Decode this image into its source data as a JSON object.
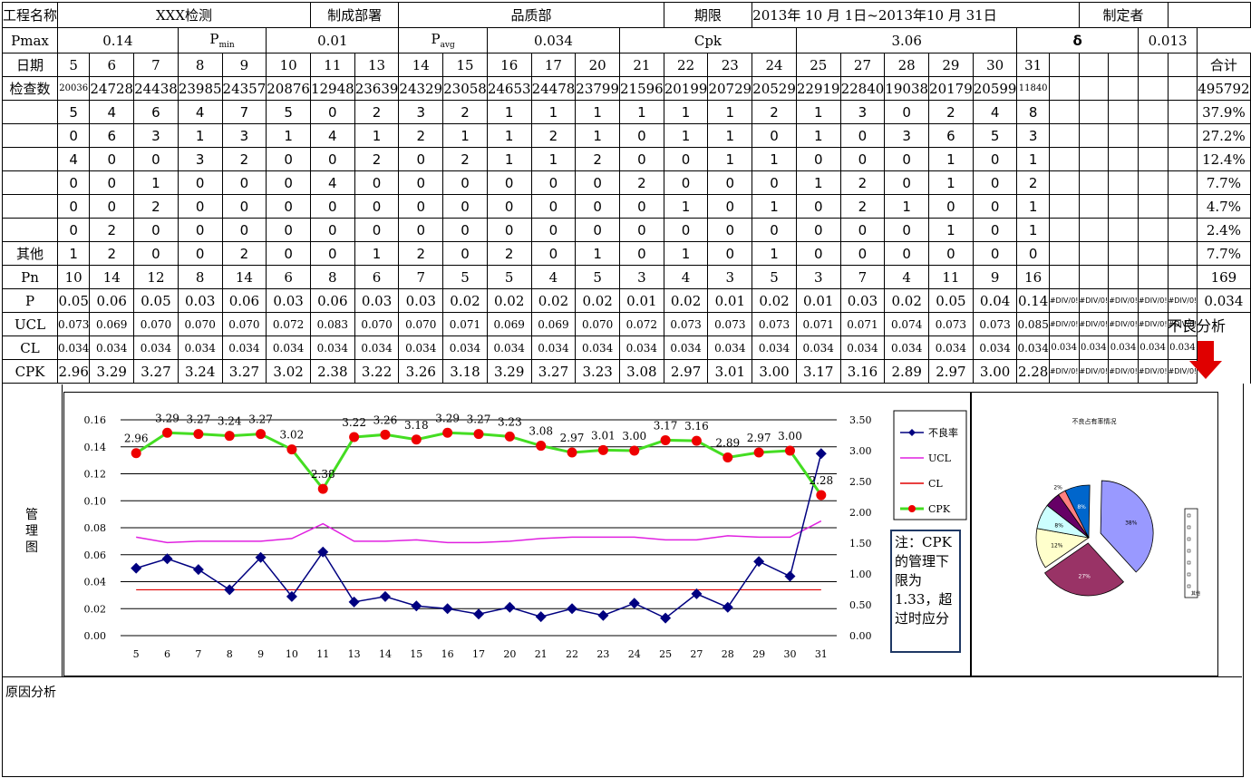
{
  "header": {
    "project_label": "工程名称",
    "project_value": "XXX检测",
    "dept_label": "制成部署",
    "dept_value": "品质部",
    "period_label": "期限",
    "period_value": "2013年 10 月  1日~2013年10 月 31日",
    "author_label": "制定者",
    "author_value": ""
  },
  "params": {
    "pmax_label": "Pmax",
    "pmax_value": "0.14",
    "pmin_label": "P",
    "pmin_sub": "min",
    "pmin_value": "0.01",
    "pavg_label": "P",
    "pavg_sub": "avg",
    "pavg_value": "0.034",
    "cpk_label": "Cpk",
    "cpk_value": "3.06",
    "delta_label": "δ",
    "delta_value": "0.013"
  },
  "table": {
    "date_label": "日期",
    "total_label": "合计",
    "dates": [
      "5",
      "6",
      "7",
      "8",
      "9",
      "10",
      "11",
      "13",
      "14",
      "15",
      "16",
      "17",
      "20",
      "21",
      "22",
      "23",
      "24",
      "25",
      "27",
      "28",
      "29",
      "30",
      "31"
    ],
    "inspect_label": "检查数",
    "inspect": [
      "20036",
      "24728",
      "24438",
      "23985",
      "24357",
      "20876",
      "12948",
      "23639",
      "24329",
      "23058",
      "24653",
      "24478",
      "23799",
      "21596",
      "20199",
      "20729",
      "20529",
      "22919",
      "22840",
      "19038",
      "20179",
      "20599",
      "11840"
    ],
    "inspect_total": "495792",
    "defect_rows": [
      {
        "label": "",
        "values": [
          "5",
          "4",
          "6",
          "4",
          "7",
          "5",
          "0",
          "2",
          "3",
          "2",
          "1",
          "1",
          "1",
          "1",
          "1",
          "1",
          "2",
          "1",
          "3",
          "0",
          "2",
          "4",
          "8"
        ],
        "total": "37.9%"
      },
      {
        "label": "",
        "values": [
          "0",
          "6",
          "3",
          "1",
          "3",
          "1",
          "4",
          "1",
          "2",
          "1",
          "1",
          "2",
          "1",
          "0",
          "1",
          "1",
          "0",
          "1",
          "0",
          "3",
          "6",
          "5",
          "3"
        ],
        "total": "27.2%"
      },
      {
        "label": "",
        "values": [
          "4",
          "0",
          "0",
          "3",
          "2",
          "0",
          "0",
          "2",
          "0",
          "2",
          "1",
          "1",
          "2",
          "0",
          "0",
          "1",
          "1",
          "0",
          "0",
          "0",
          "1",
          "0",
          "1"
        ],
        "total": "12.4%"
      },
      {
        "label": "",
        "values": [
          "0",
          "0",
          "1",
          "0",
          "0",
          "0",
          "4",
          "0",
          "0",
          "0",
          "0",
          "0",
          "0",
          "2",
          "0",
          "0",
          "0",
          "1",
          "2",
          "0",
          "1",
          "0",
          "2"
        ],
        "total": "7.7%"
      },
      {
        "label": "",
        "values": [
          "0",
          "0",
          "2",
          "0",
          "0",
          "0",
          "0",
          "0",
          "0",
          "0",
          "0",
          "0",
          "0",
          "0",
          "1",
          "0",
          "1",
          "0",
          "2",
          "1",
          "0",
          "0",
          "1"
        ],
        "total": "4.7%"
      },
      {
        "label": "",
        "values": [
          "0",
          "2",
          "0",
          "0",
          "0",
          "0",
          "0",
          "0",
          "0",
          "0",
          "0",
          "0",
          "0",
          "0",
          "0",
          "0",
          "0",
          "0",
          "0",
          "0",
          "1",
          "0",
          "1"
        ],
        "total": "2.4%"
      },
      {
        "label": "其他",
        "values": [
          "1",
          "2",
          "0",
          "0",
          "2",
          "0",
          "0",
          "1",
          "2",
          "0",
          "2",
          "0",
          "1",
          "0",
          "1",
          "0",
          "1",
          "0",
          "0",
          "0",
          "0",
          "0",
          "0"
        ],
        "total": "7.7%"
      }
    ],
    "pn_label": "Pn",
    "pn": [
      "10",
      "14",
      "12",
      "8",
      "14",
      "6",
      "8",
      "6",
      "7",
      "5",
      "5",
      "4",
      "5",
      "3",
      "4",
      "3",
      "5",
      "3",
      "7",
      "4",
      "11",
      "9",
      "16"
    ],
    "pn_total": "169",
    "p_label": "P",
    "p": [
      "0.05",
      "0.06",
      "0.05",
      "0.03",
      "0.06",
      "0.03",
      "0.06",
      "0.03",
      "0.03",
      "0.02",
      "0.02",
      "0.02",
      "0.02",
      "0.01",
      "0.02",
      "0.01",
      "0.02",
      "0.01",
      "0.03",
      "0.02",
      "0.05",
      "0.04",
      "0.14"
    ],
    "p_total": "0.034",
    "ucl_label": "UCL",
    "ucl": [
      "0.073",
      "0.069",
      "0.070",
      "0.070",
      "0.070",
      "0.072",
      "0.083",
      "0.070",
      "0.070",
      "0.071",
      "0.069",
      "0.069",
      "0.070",
      "0.072",
      "0.073",
      "0.073",
      "0.073",
      "0.071",
      "0.071",
      "0.074",
      "0.073",
      "0.073",
      "0.085"
    ],
    "cl_label": "CL",
    "cl": [
      "0.034",
      "0.034",
      "0.034",
      "0.034",
      "0.034",
      "0.034",
      "0.034",
      "0.034",
      "0.034",
      "0.034",
      "0.034",
      "0.034",
      "0.034",
      "0.034",
      "0.034",
      "0.034",
      "0.034",
      "0.034",
      "0.034",
      "0.034",
      "0.034",
      "0.034",
      "0.034"
    ],
    "cl_extra": "0.034",
    "cpk_label": "CPK",
    "cpk": [
      "2.96",
      "3.29",
      "3.27",
      "3.24",
      "3.27",
      "3.02",
      "2.38",
      "3.22",
      "3.26",
      "3.18",
      "3.29",
      "3.27",
      "3.23",
      "3.08",
      "2.97",
      "3.01",
      "3.00",
      "3.17",
      "3.16",
      "2.89",
      "2.97",
      "3.00",
      "2.28"
    ],
    "div_error": "#DIV/0!",
    "bad_analysis_label": "不良分析"
  },
  "side_labels": {
    "control_chart": "管理图",
    "cause_analysis": "原因分析"
  },
  "note": "注：CPK的管理下限为1.33，超过时应分",
  "colors": {
    "p_series": "#000080",
    "ucl_series": "#e020e0",
    "cl_series": "#e00000",
    "cpk_line": "#44dd22",
    "cpk_marker": "#ee0000",
    "arrow": "#e00000"
  },
  "chart_data": [
    {
      "type": "line",
      "title": "",
      "x": [
        "5",
        "6",
        "7",
        "8",
        "9",
        "10",
        "11",
        "13",
        "14",
        "15",
        "16",
        "17",
        "20",
        "21",
        "22",
        "23",
        "24",
        "25",
        "27",
        "28",
        "29",
        "30",
        "31"
      ],
      "series": [
        {
          "name": "不良率",
          "axis": "left",
          "values": [
            0.05,
            0.057,
            0.049,
            0.034,
            0.058,
            0.029,
            0.062,
            0.025,
            0.029,
            0.022,
            0.02,
            0.016,
            0.021,
            0.014,
            0.02,
            0.015,
            0.024,
            0.013,
            0.031,
            0.021,
            0.055,
            0.044,
            0.135
          ]
        },
        {
          "name": "UCL",
          "axis": "left",
          "values": [
            0.073,
            0.069,
            0.07,
            0.07,
            0.07,
            0.072,
            0.083,
            0.07,
            0.07,
            0.071,
            0.069,
            0.069,
            0.07,
            0.072,
            0.073,
            0.073,
            0.073,
            0.071,
            0.071,
            0.074,
            0.073,
            0.073,
            0.085
          ]
        },
        {
          "name": "CL",
          "axis": "left",
          "values": [
            0.034,
            0.034,
            0.034,
            0.034,
            0.034,
            0.034,
            0.034,
            0.034,
            0.034,
            0.034,
            0.034,
            0.034,
            0.034,
            0.034,
            0.034,
            0.034,
            0.034,
            0.034,
            0.034,
            0.034,
            0.034,
            0.034,
            0.034
          ]
        },
        {
          "name": "CPK",
          "axis": "right",
          "values": [
            2.96,
            3.29,
            3.27,
            3.24,
            3.27,
            3.02,
            2.38,
            3.22,
            3.26,
            3.18,
            3.29,
            3.27,
            3.23,
            3.08,
            2.97,
            3.01,
            3.0,
            3.17,
            3.16,
            2.89,
            2.97,
            3.0,
            2.28
          ]
        }
      ],
      "ylim_left": [
        0,
        0.16
      ],
      "ylim_right": [
        0,
        3.5
      ],
      "yticks_left": [
        "0.00",
        "0.02",
        "0.04",
        "0.06",
        "0.08",
        "0.10",
        "0.12",
        "0.14",
        "0.16"
      ],
      "yticks_right": [
        "0.00",
        "0.50",
        "1.00",
        "1.50",
        "2.00",
        "2.50",
        "3.00",
        "3.50"
      ],
      "grid": true,
      "legend": "right"
    },
    {
      "type": "pie",
      "title": "不良占有率情况",
      "slices": [
        {
          "label": "38%",
          "value": 37.9,
          "color": "#9999ff"
        },
        {
          "label": "27%",
          "value": 27.2,
          "color": "#993366"
        },
        {
          "label": "12%",
          "value": 12.4,
          "color": "#ffffcc"
        },
        {
          "label": "8%",
          "value": 7.7,
          "color": "#ccffff"
        },
        {
          "label": "5%",
          "value": 4.7,
          "color": "#660066"
        },
        {
          "label": "2%",
          "value": 2.4,
          "color": "#ff8080"
        },
        {
          "label": "8%",
          "value": 7.7,
          "color": "#0066cc"
        }
      ],
      "legend_last": "其他",
      "legend": "right"
    }
  ]
}
